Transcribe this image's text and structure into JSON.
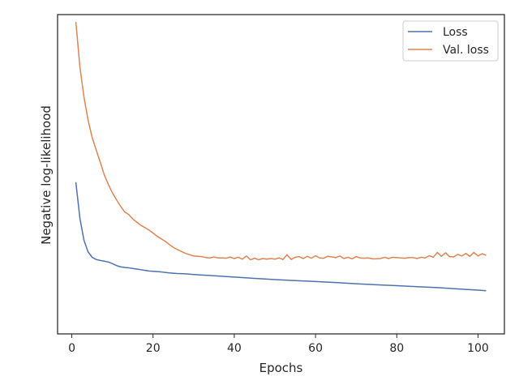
{
  "chart_data": {
    "type": "line",
    "title": "",
    "xlabel": "Epochs",
    "ylabel": "Negative log-likelihood",
    "xlim": [
      -3.5,
      106.5
    ],
    "ylim": [
      0,
      1
    ],
    "xticks": [
      0,
      20,
      40,
      60,
      80,
      100
    ],
    "xtick_labels": [
      "0",
      "20",
      "40",
      "60",
      "80",
      "100"
    ],
    "yticks_shown": false,
    "grid": false,
    "legend": {
      "position": "top-right"
    },
    "series": [
      {
        "name": "Loss",
        "color": "#4c72b0",
        "x": [
          1,
          2,
          3,
          4,
          5,
          6,
          7,
          8,
          9,
          10,
          11,
          12,
          13,
          14,
          15,
          16,
          17,
          18,
          19,
          20,
          22,
          24,
          26,
          28,
          30,
          35,
          40,
          45,
          50,
          55,
          60,
          65,
          70,
          75,
          80,
          85,
          90,
          95,
          100,
          102
        ],
        "y": [
          0.475,
          0.362,
          0.293,
          0.257,
          0.24,
          0.233,
          0.23,
          0.228,
          0.225,
          0.22,
          0.214,
          0.21,
          0.208,
          0.207,
          0.205,
          0.203,
          0.201,
          0.199,
          0.197,
          0.196,
          0.194,
          0.191,
          0.189,
          0.188,
          0.186,
          0.182,
          0.178,
          0.174,
          0.17,
          0.167,
          0.164,
          0.161,
          0.157,
          0.154,
          0.151,
          0.148,
          0.145,
          0.141,
          0.137,
          0.135
        ]
      },
      {
        "name": "Val. loss",
        "color": "#dd8452",
        "x": [
          1,
          2,
          3,
          4,
          5,
          6,
          7,
          8,
          9,
          10,
          11,
          12,
          13,
          14,
          15,
          16,
          17,
          18,
          19,
          20,
          21,
          22,
          23,
          24,
          25,
          26,
          27,
          28,
          29,
          30,
          31,
          32,
          33,
          34,
          35,
          36,
          37,
          38,
          39,
          40,
          41,
          42,
          43,
          44,
          45,
          46,
          47,
          48,
          49,
          50,
          51,
          52,
          53,
          54,
          55,
          56,
          57,
          58,
          59,
          60,
          61,
          62,
          63,
          64,
          65,
          66,
          67,
          68,
          69,
          70,
          71,
          72,
          73,
          74,
          75,
          76,
          77,
          78,
          79,
          80,
          81,
          82,
          83,
          84,
          85,
          86,
          87,
          88,
          89,
          90,
          91,
          92,
          93,
          94,
          95,
          96,
          97,
          98,
          99,
          100,
          101,
          102
        ],
        "y": [
          0.977,
          0.836,
          0.741,
          0.67,
          0.616,
          0.576,
          0.538,
          0.498,
          0.468,
          0.442,
          0.42,
          0.4,
          0.382,
          0.374,
          0.36,
          0.35,
          0.34,
          0.333,
          0.325,
          0.316,
          0.306,
          0.298,
          0.29,
          0.28,
          0.271,
          0.264,
          0.258,
          0.252,
          0.248,
          0.244,
          0.243,
          0.242,
          0.239,
          0.238,
          0.241,
          0.238,
          0.238,
          0.237,
          0.241,
          0.236,
          0.24,
          0.234,
          0.244,
          0.232,
          0.237,
          0.232,
          0.236,
          0.234,
          0.236,
          0.234,
          0.238,
          0.233,
          0.248,
          0.233,
          0.24,
          0.242,
          0.236,
          0.243,
          0.237,
          0.245,
          0.238,
          0.237,
          0.243,
          0.241,
          0.239,
          0.244,
          0.236,
          0.24,
          0.235,
          0.242,
          0.238,
          0.237,
          0.238,
          0.235,
          0.235,
          0.236,
          0.24,
          0.236,
          0.24,
          0.239,
          0.238,
          0.237,
          0.239,
          0.239,
          0.236,
          0.24,
          0.238,
          0.245,
          0.24,
          0.255,
          0.243,
          0.254,
          0.242,
          0.241,
          0.249,
          0.244,
          0.252,
          0.243,
          0.255,
          0.244,
          0.251,
          0.246
        ]
      }
    ]
  }
}
